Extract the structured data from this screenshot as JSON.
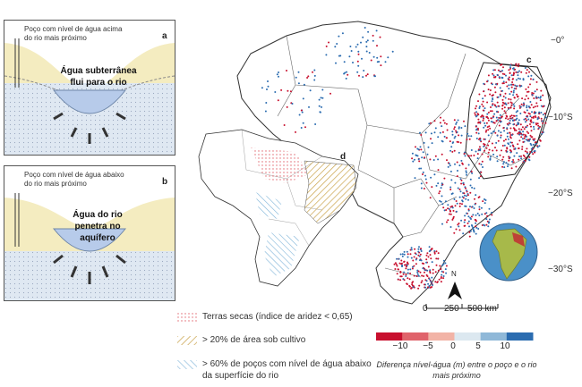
{
  "panel_a": {
    "letter": "a",
    "well_label": "Poço com nível de água acima do rio mais próximo",
    "flow_label": "Água subterrânea flui para o rio"
  },
  "panel_b": {
    "letter": "b",
    "well_label": "Poço com nível de água abaixo do rio mais próximo",
    "flow_label": "Água do rio penetra no aquífero"
  },
  "map": {
    "latitude_labels": [
      "−0°",
      "−10°S",
      "−20°S",
      "−30°S"
    ],
    "inset_c_letter": "c",
    "inset_d_letter": "d",
    "north_label": "N"
  },
  "scale_bar": {
    "labels": [
      "0",
      "250",
      "500 km"
    ]
  },
  "legend": {
    "drylands": "Terras secas (índice de aridez < 0,65)",
    "cultivated": "> 20% de área sob cultivo",
    "wells_below": "> 60% de poços com nível de água abaixo da superfície do rio"
  },
  "colorbar": {
    "ticks": [
      "−10",
      "−5",
      "0",
      "5",
      "10"
    ],
    "caption": "Diferença nível-água (m) entre o poço e o rio mais próximo",
    "colors": [
      "#c8102e",
      "#e0636b",
      "#f2b3a6",
      "#dce8f0",
      "#8fb8d8",
      "#2b6cb0"
    ]
  },
  "colors": {
    "sediment": "#f4ecc0",
    "groundwater": "#dfe8f2",
    "river": "#b7cbea",
    "positive": "#2b6cb0",
    "negative": "#c8102e",
    "land": "#ffffff",
    "ocean_globe": "#4a90c8",
    "continent_globe": "#a7b94a"
  }
}
